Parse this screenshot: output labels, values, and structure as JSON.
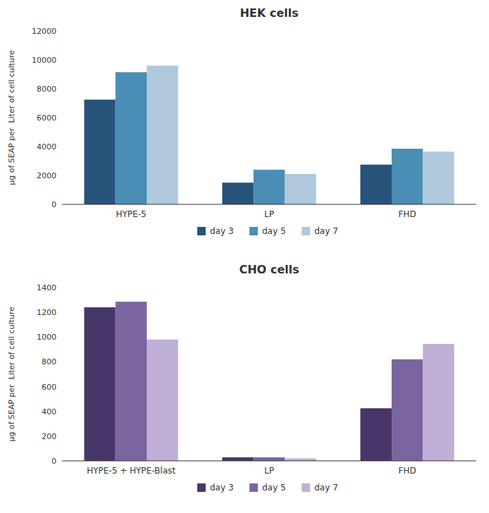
{
  "chart_data": [
    {
      "type": "bar",
      "title": "HEK cells",
      "ylabel": "µg of SEAP per  Liter of cell culture",
      "categories": [
        "HYPE-5",
        "LP",
        "FHD"
      ],
      "series": [
        {
          "name": "day 3",
          "color": "#27527A",
          "values": [
            7250,
            1500,
            2750
          ]
        },
        {
          "name": "day 5",
          "color": "#4A8DB5",
          "values": [
            9150,
            2400,
            3850
          ]
        },
        {
          "name": "day 7",
          "color": "#B0C8DC",
          "values": [
            9600,
            2100,
            3650
          ]
        }
      ],
      "ylim": [
        0,
        12000
      ],
      "yticks": [
        0,
        2000,
        4000,
        6000,
        8000,
        10000,
        12000
      ],
      "grid": false,
      "legend": "bottom"
    },
    {
      "type": "bar",
      "title": "CHO cells",
      "ylabel": "µg of SEAP per  Liter of cell culture",
      "categories": [
        "HYPE-5 + HYPE-Blast",
        "LP",
        "FHD"
      ],
      "series": [
        {
          "name": "day 3",
          "color": "#483668",
          "values": [
            1240,
            28,
            425
          ]
        },
        {
          "name": "day 5",
          "color": "#7B65A0",
          "values": [
            1285,
            28,
            820
          ]
        },
        {
          "name": "day 7",
          "color": "#C0B0D5",
          "values": [
            980,
            20,
            945
          ]
        }
      ],
      "ylim": [
        0,
        1400
      ],
      "yticks": [
        0,
        200,
        400,
        600,
        800,
        1000,
        1200,
        1400
      ],
      "grid": false,
      "legend": "bottom"
    }
  ]
}
